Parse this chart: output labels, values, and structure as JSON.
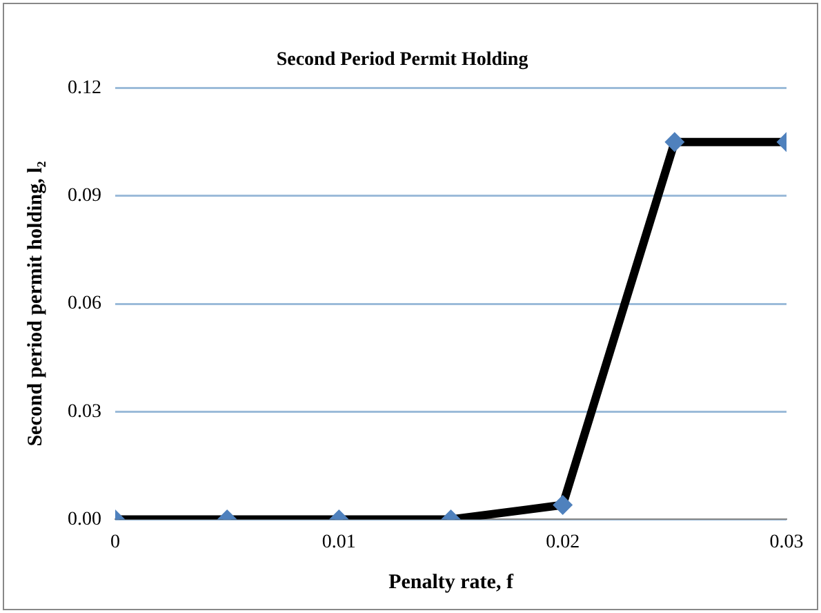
{
  "chart_data": {
    "type": "line",
    "title": "Second Period Permit Holding",
    "xlabel": "Penalty rate, f",
    "ylabel": "Second period permit holding, l₂",
    "x": [
      0,
      0.005,
      0.01,
      0.015,
      0.02,
      0.025,
      0.03
    ],
    "series": [
      {
        "color": "#000000",
        "values": [
          0,
          0,
          0,
          0,
          0.004,
          0.105,
          0.105
        ]
      }
    ],
    "xlim": [
      0,
      0.03
    ],
    "xticks": [
      0,
      0.01,
      0.02,
      0.03
    ],
    "ylim": [
      0,
      0.12
    ],
    "yticks": [
      {
        "value": 0,
        "label": "0.00"
      },
      0.03,
      0.06,
      0.09,
      0.12
    ],
    "grid": "y",
    "legend": false,
    "marker": "diamond",
    "line_style": "solid"
  }
}
